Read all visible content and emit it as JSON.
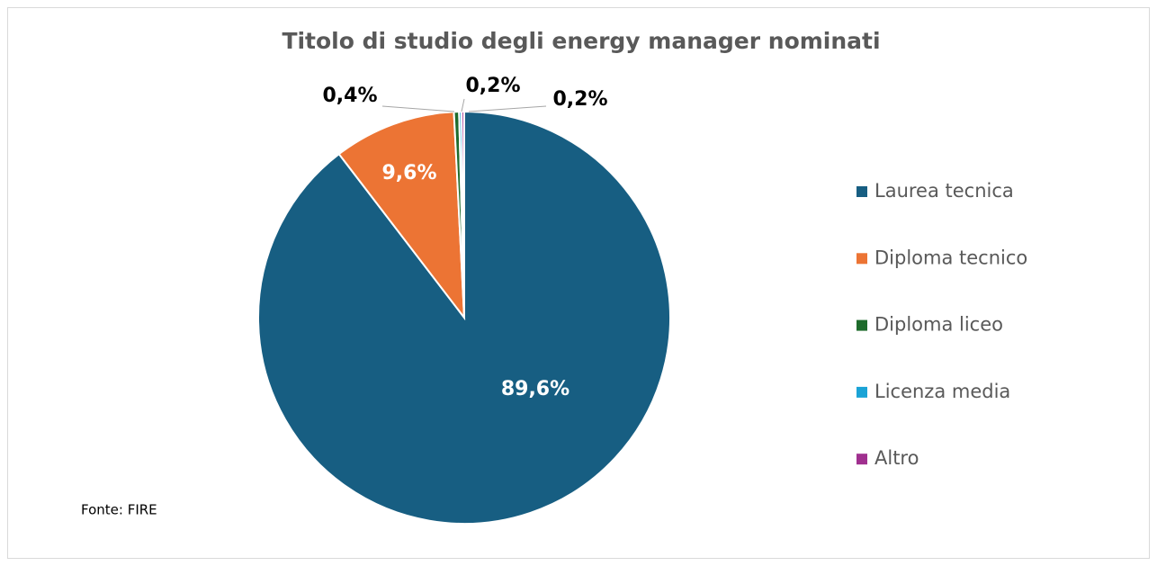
{
  "chart_data": {
    "type": "pie",
    "title": "Titolo di studio degli energy manager nominati",
    "categories": [
      "Laurea tecnica",
      "Diploma tecnico",
      "Diploma liceo",
      "Licenza media",
      "Altro"
    ],
    "values": [
      89.6,
      9.6,
      0.4,
      0.2,
      0.2
    ],
    "value_labels": [
      "89,6%",
      "9,6%",
      "0,4%",
      "0,2%",
      "0,2%"
    ],
    "colors": [
      "#175e82",
      "#ec7434",
      "#1e6b2c",
      "#1aa3d6",
      "#a0308f"
    ],
    "annotation": "Fonte: FIRE",
    "legend": "right"
  }
}
